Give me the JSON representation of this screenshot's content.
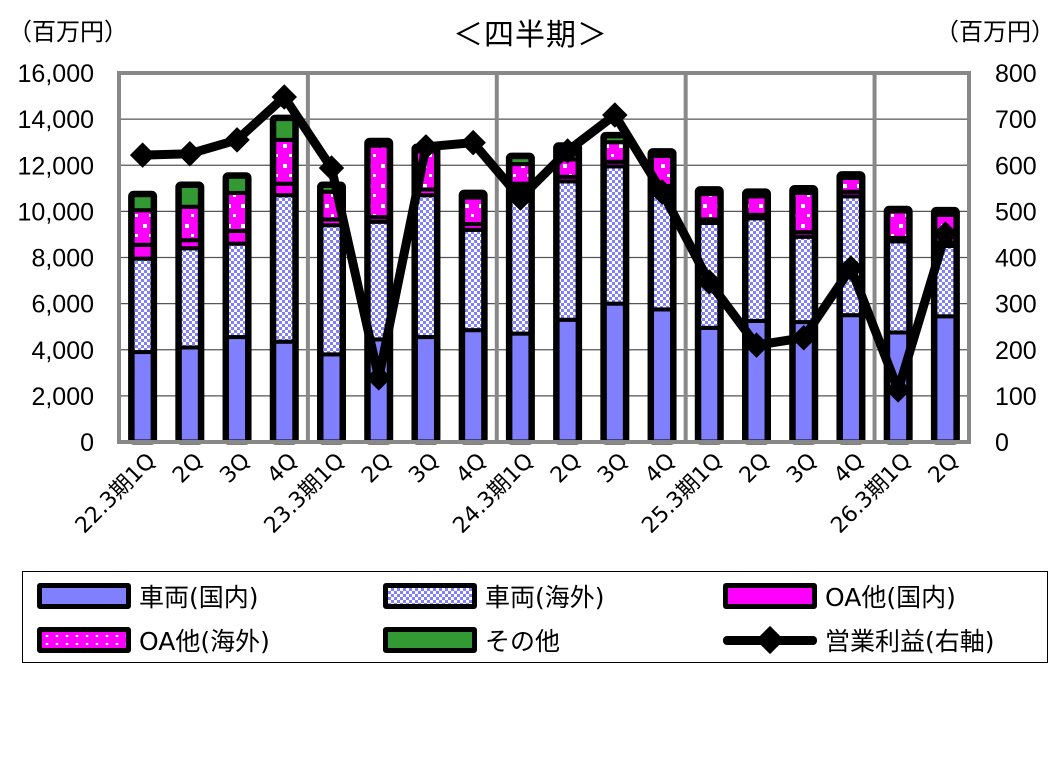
{
  "header": {
    "title": "＜四半期＞",
    "left_unit": "（百万円）",
    "right_unit": "（百万円）"
  },
  "chart_data": {
    "type": "bar",
    "subtype": "stacked bar + line (secondary axis)",
    "title": "＜四半期＞",
    "ylabel": "（百万円）",
    "y2label": "（百万円）",
    "ylim": [
      0,
      16000
    ],
    "y2lim": [
      0,
      800
    ],
    "yticks": [
      "0",
      "2,000",
      "4,000",
      "6,000",
      "8,000",
      "10,000",
      "12,000",
      "14,000",
      "16,000"
    ],
    "y2ticks": [
      "0",
      "100",
      "200",
      "300",
      "400",
      "500",
      "600",
      "700",
      "800"
    ],
    "grid": true,
    "legend_position": "bottom",
    "categories": [
      "22.3期1Q",
      "2Q",
      "3Q",
      "4Q",
      "23.3期1Q",
      "2Q",
      "3Q",
      "4Q",
      "24.3期1Q",
      "2Q",
      "3Q",
      "4Q",
      "25.3期1Q",
      "2Q",
      "3Q",
      "4Q",
      "26.3期1Q",
      "2Q"
    ],
    "fiscal_year_separators_after_index": [
      3,
      7,
      11,
      15
    ],
    "series": [
      {
        "name": "車両(国内)",
        "type": "bar",
        "axis": "left",
        "color": "#8080ff",
        "pattern": "solid",
        "values": [
          3900,
          4100,
          4550,
          4350,
          3800,
          4450,
          4550,
          4850,
          4700,
          5300,
          6000,
          5750,
          4950,
          5250,
          5200,
          5500,
          4750,
          5450
        ]
      },
      {
        "name": "車両(海外)",
        "type": "bar",
        "axis": "left",
        "color": "#8080ff",
        "pattern": "checker",
        "values": [
          4050,
          4300,
          4050,
          6350,
          5600,
          5100,
          6150,
          4350,
          6400,
          6000,
          5950,
          5200,
          4550,
          4450,
          3700,
          5150,
          3950,
          3050
        ]
      },
      {
        "name": "OA他(国内)",
        "type": "bar",
        "axis": "left",
        "color": "#ff00ff",
        "pattern": "solid",
        "values": [
          600,
          350,
          550,
          500,
          250,
          200,
          250,
          250,
          100,
          200,
          200,
          150,
          150,
          150,
          200,
          200,
          150,
          150
        ]
      },
      {
        "name": "OA他(海外)",
        "type": "bar",
        "axis": "left",
        "color": "#ff00ff",
        "pattern": "dots",
        "values": [
          1500,
          1450,
          1650,
          1900,
          1200,
          3100,
          1650,
          1150,
          850,
          750,
          850,
          1300,
          1100,
          800,
          1700,
          600,
          1150,
          1200
        ]
      },
      {
        "name": "その他",
        "type": "bar",
        "axis": "left",
        "color": "#339933",
        "pattern": "solid",
        "values": [
          650,
          900,
          700,
          900,
          250,
          150,
          150,
          150,
          300,
          550,
          250,
          150,
          150,
          150,
          150,
          100,
          50,
          150
        ]
      },
      {
        "name": "営業利益(右軸)",
        "type": "line",
        "axis": "right",
        "color": "#000000",
        "marker": "diamond",
        "values": [
          622,
          625,
          655,
          748,
          594,
          139,
          640,
          649,
          529,
          631,
          709,
          542,
          347,
          210,
          226,
          377,
          113,
          451
        ]
      }
    ]
  },
  "legend": {
    "items": [
      {
        "label": "車両(国内)",
        "swatch": "sw-vd"
      },
      {
        "label": "車両(海外)",
        "swatch": "sw-vo"
      },
      {
        "label": "OA他(国内)",
        "swatch": "sw-oad"
      },
      {
        "label": "OA他(海外)",
        "swatch": "sw-oao"
      },
      {
        "label": "その他",
        "swatch": "sw-oth"
      },
      {
        "label": "営業利益(右軸)",
        "swatch": "sw-line"
      }
    ]
  }
}
